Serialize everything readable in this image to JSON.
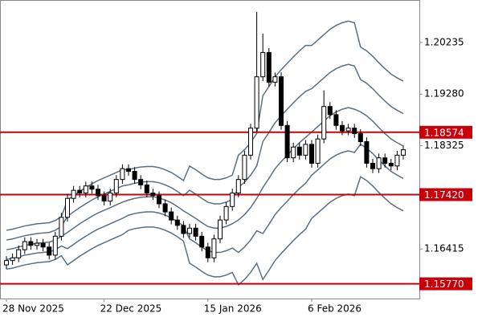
{
  "chart_data": {
    "type": "candlestick",
    "categories": [
      "28 Nov 2025",
      null,
      null,
      null,
      null,
      null,
      null,
      null,
      null,
      null,
      null,
      null,
      null,
      null,
      null,
      null,
      "22 Dec 2025",
      null,
      null,
      null,
      null,
      null,
      null,
      null,
      null,
      null,
      null,
      null,
      null,
      null,
      null,
      null,
      null,
      "15 Jan 2026",
      null,
      null,
      null,
      null,
      null,
      null,
      null,
      null,
      null,
      null,
      null,
      null,
      null,
      null,
      null,
      null,
      "6 Feb 2026",
      null,
      null,
      null,
      null,
      null,
      null,
      null,
      null,
      null,
      null,
      null,
      null,
      null,
      null,
      null
    ],
    "open": [
      1.1612,
      1.162,
      1.1625,
      1.164,
      1.1655,
      1.1648,
      1.1652,
      1.1645,
      1.163,
      1.1665,
      1.17,
      1.1735,
      1.175,
      1.1745,
      1.1758,
      1.1752,
      1.174,
      1.173,
      1.1745,
      1.177,
      1.179,
      1.1785,
      1.177,
      1.176,
      1.1745,
      1.174,
      1.1725,
      1.171,
      1.1695,
      1.1685,
      1.167,
      1.168,
      1.1665,
      1.1645,
      1.1625,
      1.166,
      1.1695,
      1.172,
      1.1745,
      1.177,
      1.1815,
      1.1865,
      1.196,
      1.2005,
      1.195,
      1.196,
      1.187,
      1.181,
      1.183,
      1.1815,
      1.1835,
      1.18,
      1.1845,
      1.1905,
      1.189,
      1.187,
      1.186,
      1.1865,
      1.1855,
      1.184,
      1.18,
      1.179,
      1.181,
      1.18,
      1.1795,
      1.1815
    ],
    "high": [
      1.1628,
      1.1633,
      1.1648,
      1.1663,
      1.1663,
      1.166,
      1.166,
      1.1653,
      1.1673,
      1.1708,
      1.1743,
      1.1758,
      1.1758,
      1.1766,
      1.1766,
      1.176,
      1.1748,
      1.1753,
      1.1778,
      1.1798,
      1.1798,
      1.1793,
      1.1778,
      1.1768,
      1.1753,
      1.1748,
      1.1733,
      1.1718,
      1.1703,
      1.1693,
      1.1688,
      1.1688,
      1.1673,
      1.1653,
      1.1668,
      1.1703,
      1.1728,
      1.1753,
      1.1778,
      1.1823,
      1.1873,
      1.208,
      1.204,
      1.2013,
      1.1968,
      1.1968,
      1.1878,
      1.1838,
      1.1838,
      1.1843,
      1.1843,
      1.1853,
      1.1935,
      1.1913,
      1.1898,
      1.1878,
      1.1873,
      1.1873,
      1.1863,
      1.1848,
      1.1808,
      1.1818,
      1.1818,
      1.1808,
      1.1823,
      1.1833
    ],
    "low": [
      1.1604,
      1.1612,
      1.1617,
      1.1632,
      1.164,
      1.164,
      1.1637,
      1.1622,
      1.1622,
      1.1657,
      1.1692,
      1.1727,
      1.1737,
      1.1737,
      1.1744,
      1.1732,
      1.1722,
      1.1722,
      1.1737,
      1.1762,
      1.1777,
      1.1762,
      1.1752,
      1.1737,
      1.1732,
      1.1717,
      1.1702,
      1.1687,
      1.1677,
      1.1662,
      1.1662,
      1.1657,
      1.1637,
      1.1617,
      1.1617,
      1.1652,
      1.1687,
      1.1712,
      1.1737,
      1.1762,
      1.1807,
      1.1857,
      1.1952,
      1.1942,
      1.1942,
      1.1862,
      1.1802,
      1.1802,
      1.1807,
      1.1807,
      1.1792,
      1.1792,
      1.1837,
      1.1882,
      1.1862,
      1.1852,
      1.1852,
      1.1847,
      1.1832,
      1.1792,
      1.1782,
      1.1782,
      1.1792,
      1.1787,
      1.1787,
      1.1807
    ],
    "close": [
      1.162,
      1.1625,
      1.164,
      1.1655,
      1.1648,
      1.1652,
      1.1645,
      1.163,
      1.1665,
      1.17,
      1.1735,
      1.175,
      1.1745,
      1.1758,
      1.1752,
      1.174,
      1.173,
      1.1745,
      1.177,
      1.179,
      1.1785,
      1.177,
      1.176,
      1.1745,
      1.174,
      1.1725,
      1.171,
      1.1695,
      1.1685,
      1.167,
      1.168,
      1.1665,
      1.1645,
      1.1625,
      1.166,
      1.1695,
      1.172,
      1.1745,
      1.177,
      1.1815,
      1.1865,
      1.196,
      1.2005,
      1.195,
      1.196,
      1.187,
      1.181,
      1.183,
      1.1815,
      1.1835,
      1.18,
      1.1845,
      1.1905,
      1.189,
      1.187,
      1.186,
      1.1865,
      1.1855,
      1.184,
      1.18,
      1.179,
      1.181,
      1.18,
      1.1795,
      1.1815,
      1.1825
    ],
    "up_color": "#ffffff",
    "down_color": "#000000",
    "series": [
      {
        "color": "#5b6f80",
        "values": [
          1.1676,
          1.1678,
          1.1681,
          1.1684,
          1.1686,
          1.1688,
          1.1689,
          1.169,
          1.1694,
          1.1701,
          1.1732,
          1.174,
          1.1748,
          1.1755,
          1.1762,
          1.1768,
          1.1773,
          1.1778,
          1.1783,
          1.1788,
          1.1788,
          1.1791,
          1.1793,
          1.1794,
          1.1794,
          1.1792,
          1.1788,
          1.1783,
          1.1776,
          1.1768,
          1.1795,
          1.1788,
          1.178,
          1.1773,
          1.177,
          1.177,
          1.1773,
          1.1778,
          1.1815,
          1.1825,
          1.1838,
          1.1855,
          1.1925,
          1.1942,
          1.196,
          1.1973,
          1.1985,
          1.1997,
          1.2008,
          1.2018,
          1.2018,
          1.2028,
          1.2038,
          1.2048,
          1.2055,
          1.206,
          1.2063,
          1.206,
          1.2015,
          1.2008,
          1.1998,
          1.1986,
          1.1975,
          1.1965,
          1.1958,
          1.1952
        ]
      },
      {
        "color": "#5b6f80",
        "values": [
          1.1658,
          1.166,
          1.1663,
          1.1666,
          1.1668,
          1.167,
          1.1671,
          1.1672,
          1.1676,
          1.1683,
          1.1702,
          1.171,
          1.1718,
          1.1725,
          1.1732,
          1.1738,
          1.1743,
          1.1748,
          1.1753,
          1.1758,
          1.176,
          1.1763,
          1.1765,
          1.1766,
          1.1766,
          1.1764,
          1.176,
          1.1755,
          1.1748,
          1.174,
          1.175,
          1.1743,
          1.1735,
          1.1728,
          1.1725,
          1.1725,
          1.1728,
          1.1733,
          1.1755,
          1.1765,
          1.1778,
          1.1795,
          1.184,
          1.1857,
          1.1875,
          1.1888,
          1.19,
          1.1912,
          1.1923,
          1.1933,
          1.1938,
          1.1948,
          1.1958,
          1.1968,
          1.1975,
          1.198,
          1.1983,
          1.198,
          1.1955,
          1.1948,
          1.1938,
          1.1926,
          1.1915,
          1.1905,
          1.1898,
          1.1892
        ]
      },
      {
        "color": "#5b6f80",
        "values": [
          1.164,
          1.1642,
          1.1645,
          1.1648,
          1.165,
          1.1652,
          1.1653,
          1.1654,
          1.1658,
          1.1665,
          1.1672,
          1.168,
          1.1688,
          1.1695,
          1.1702,
          1.1708,
          1.1713,
          1.1718,
          1.1723,
          1.1728,
          1.1732,
          1.1735,
          1.1737,
          1.1738,
          1.1738,
          1.1736,
          1.1732,
          1.1727,
          1.172,
          1.1712,
          1.1705,
          1.1698,
          1.169,
          1.1683,
          1.168,
          1.168,
          1.1683,
          1.1688,
          1.1695,
          1.1705,
          1.1718,
          1.1735,
          1.1755,
          1.1772,
          1.179,
          1.1803,
          1.1815,
          1.1827,
          1.1838,
          1.1848,
          1.1858,
          1.1868,
          1.1878,
          1.1888,
          1.1895,
          1.19,
          1.1903,
          1.19,
          1.1895,
          1.1888,
          1.1878,
          1.1866,
          1.1855,
          1.1845,
          1.1838,
          1.1832
        ]
      },
      {
        "color": "#5b6f80",
        "values": [
          1.1622,
          1.1624,
          1.1627,
          1.163,
          1.1632,
          1.1634,
          1.1635,
          1.1636,
          1.164,
          1.1647,
          1.1642,
          1.165,
          1.1658,
          1.1665,
          1.1672,
          1.1678,
          1.1683,
          1.1688,
          1.1693,
          1.1698,
          1.1704,
          1.1707,
          1.1709,
          1.171,
          1.171,
          1.1708,
          1.1704,
          1.1699,
          1.1692,
          1.1684,
          1.166,
          1.1653,
          1.1645,
          1.1638,
          1.1635,
          1.1635,
          1.1638,
          1.1643,
          1.1635,
          1.1645,
          1.1658,
          1.1675,
          1.167,
          1.1687,
          1.1705,
          1.1718,
          1.173,
          1.1742,
          1.1753,
          1.1763,
          1.1778,
          1.1788,
          1.1798,
          1.1808,
          1.1815,
          1.182,
          1.1823,
          1.182,
          1.1835,
          1.1828,
          1.1818,
          1.1806,
          1.1795,
          1.1785,
          1.1778,
          1.1772
        ]
      },
      {
        "color": "#5b6f80",
        "values": [
          1.1604,
          1.1606,
          1.1609,
          1.1612,
          1.1614,
          1.1616,
          1.1617,
          1.1618,
          1.1622,
          1.1629,
          1.1612,
          1.162,
          1.1628,
          1.1635,
          1.1642,
          1.1648,
          1.1653,
          1.1658,
          1.1663,
          1.1668,
          1.1676,
          1.1679,
          1.1681,
          1.1682,
          1.1682,
          1.168,
          1.1676,
          1.1671,
          1.1664,
          1.1656,
          1.1615,
          1.1608,
          1.16,
          1.1593,
          1.159,
          1.159,
          1.1593,
          1.1598,
          1.1575,
          1.1585,
          1.1598,
          1.1615,
          1.1585,
          1.1602,
          1.162,
          1.1633,
          1.1645,
          1.1657,
          1.1668,
          1.1678,
          1.1698,
          1.1708,
          1.1718,
          1.1728,
          1.1735,
          1.174,
          1.1743,
          1.174,
          1.1775,
          1.1768,
          1.1758,
          1.1746,
          1.1735,
          1.1725,
          1.1718,
          1.1712
        ]
      }
    ],
    "hlines": [
      {
        "value": 1.18574,
        "label": "1.18574"
      },
      {
        "value": 1.1742,
        "label": "1.17420"
      },
      {
        "value": 1.1577,
        "label": "1.15770"
      }
    ],
    "hline_color": "#c8000a",
    "ylim": [
      1.15497,
      1.21021
    ],
    "yticks": [
      1.20235,
      {
        "value": 1.1928,
        "label": "1.19280"
      },
      1.18325,
      1.16415
    ]
  }
}
